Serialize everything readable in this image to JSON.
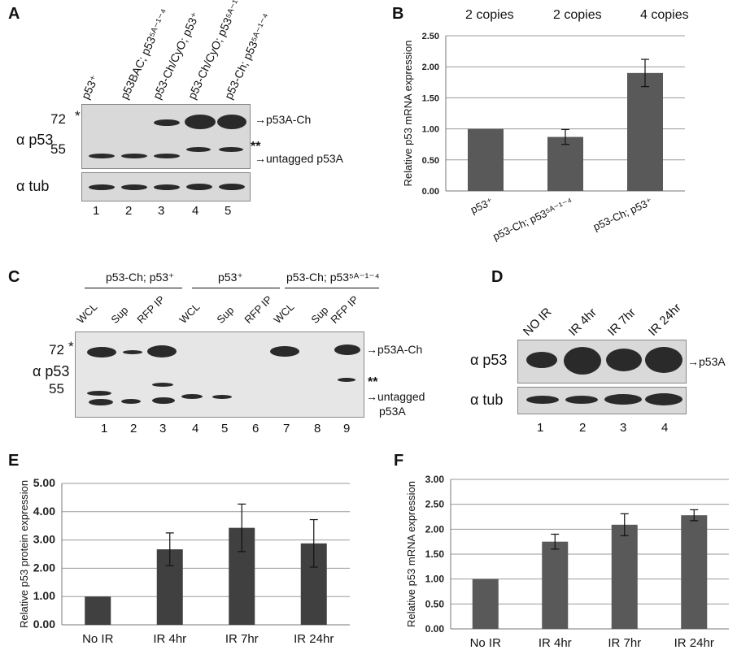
{
  "panels": {
    "A": {
      "letter": "A",
      "lane_labels": [
        "p53⁺",
        "p53BAC; p53⁵ᴬ⁻¹⁻⁴",
        "p53-Ch/CyO; p53⁺",
        "p53-Ch/CyO; p53⁵ᴬ⁻¹⁻⁴",
        "p53-Ch; p53⁵ᴬ⁻¹⁻⁴"
      ],
      "marker_72": "72",
      "marker_55": "55",
      "star": "*",
      "double_star": "**",
      "row_p53": "α p53",
      "row_tub": "α tub",
      "arrow_p53ach": "p53A-Ch",
      "arrow_untagged": "untagged p53A",
      "lane_numbers": [
        "1",
        "2",
        "3",
        "4",
        "5"
      ]
    },
    "B": {
      "letter": "B",
      "copies": [
        "2 copies",
        "2 copies",
        "4 copies"
      ]
    },
    "C": {
      "letter": "C",
      "groups": [
        "p53-Ch; p53⁺",
        "p53⁺",
        "p53-Ch; p53⁵ᴬ⁻¹⁻⁴"
      ],
      "lane_labels": [
        "WCL",
        "Sup",
        "RFP IP",
        "WCL",
        "Sup",
        "RFP IP",
        "WCL",
        "Sup",
        "RFP IP"
      ],
      "marker_72": "72",
      "marker_55": "55",
      "star": "*",
      "double_star": "**",
      "row_p53": "α p53",
      "arrow_p53ach": "p53A-Ch",
      "arrow_untagged_1": "untagged",
      "arrow_untagged_2": "p53A",
      "lane_numbers": [
        "1",
        "2",
        "3",
        "4",
        "5",
        "6",
        "7",
        "8",
        "9"
      ]
    },
    "D": {
      "letter": "D",
      "lane_labels": [
        "NO IR",
        "IR 4hr",
        "IR 7hr",
        "IR 24hr"
      ],
      "row_p53": "α p53",
      "row_tub": "α tub",
      "arrow_p53a": "p53A",
      "lane_numbers": [
        "1",
        "2",
        "3",
        "4"
      ]
    },
    "E": {
      "letter": "E"
    },
    "F": {
      "letter": "F"
    }
  },
  "chart_data": [
    {
      "id": "B",
      "type": "bar",
      "categories": [
        "p53⁺",
        "p53-Ch; p53⁵ᴬ⁻¹⁻⁴",
        "p53-Ch; p53⁺"
      ],
      "values": [
        1.0,
        0.87,
        1.9
      ],
      "errors": [
        0.0,
        0.12,
        0.22
      ],
      "ylabel": "Relative p53 mRNA expression",
      "ylim": [
        0,
        2.5
      ],
      "yticks": [
        "0.00",
        "0.50",
        "1.00",
        "1.50",
        "2.00",
        "2.50"
      ],
      "bar_color": "#595959",
      "grid": true
    },
    {
      "id": "E",
      "type": "bar",
      "categories": [
        "No IR",
        "IR 4hr",
        "IR 7hr",
        "IR 24hr"
      ],
      "values": [
        1.0,
        2.67,
        3.43,
        2.88
      ],
      "errors": [
        0.0,
        0.58,
        0.84,
        0.84
      ],
      "ylabel": "Relative p53 protein expression",
      "ylim": [
        0,
        5
      ],
      "yticks": [
        "0.00",
        "1.00",
        "2.00",
        "3.00",
        "4.00",
        "5.00"
      ],
      "bar_color": "#404040",
      "grid": true
    },
    {
      "id": "F",
      "type": "bar",
      "categories": [
        "No IR",
        "IR 4hr",
        "IR 7hr",
        "IR 24hr"
      ],
      "values": [
        1.0,
        1.75,
        2.09,
        2.28
      ],
      "errors": [
        0.0,
        0.15,
        0.22,
        0.11
      ],
      "ylabel": "Relative p53 mRNA expression",
      "ylim": [
        0,
        3
      ],
      "yticks": [
        "0.00",
        "0.50",
        "1.00",
        "1.50",
        "2.00",
        "2.50",
        "3.00"
      ],
      "bar_color": "#595959",
      "grid": true
    }
  ]
}
